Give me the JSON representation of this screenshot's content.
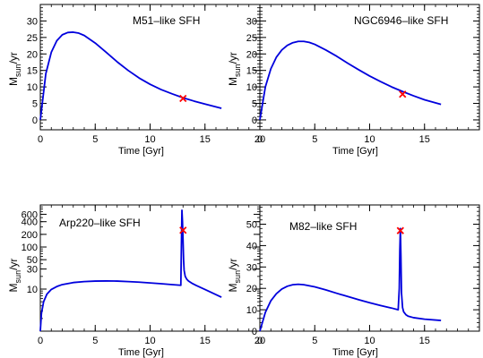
{
  "chart_data": [
    {
      "type": "line",
      "title": "M51–like SFH",
      "xlabel": "Time [Gyr]",
      "ylabel_main": "M",
      "ylabel_sub": "sun",
      "ylabel_tail": "/yr",
      "xlim": [
        0,
        20
      ],
      "ylim": [
        -3,
        35
      ],
      "yscale": "linear",
      "xticks": [
        0,
        5,
        10,
        15,
        20
      ],
      "xtick_labels": [
        "0",
        "5",
        "10",
        "15",
        "20"
      ],
      "yticks": [
        0,
        5,
        10,
        15,
        20,
        25,
        30
      ],
      "ytick_labels": [
        "0",
        "5",
        "10",
        "15",
        "20",
        "25",
        "30"
      ],
      "line_color": "#0000dd",
      "marker_color": "#ff0000",
      "marker": {
        "x": 13.0,
        "y": 6.5
      },
      "series": [
        {
          "x": [
            0,
            0.5,
            1,
            1.5,
            2,
            2.5,
            3,
            3.5,
            4,
            5,
            6,
            7,
            8,
            9,
            10,
            11,
            12,
            13,
            14,
            15,
            16.5
          ],
          "y": [
            0,
            14,
            20.5,
            24,
            25.8,
            26.5,
            26.6,
            26.3,
            25.6,
            23.3,
            20.5,
            17.6,
            15,
            12.7,
            10.8,
            9.2,
            7.9,
            6.7,
            5.7,
            4.8,
            3.5
          ]
        }
      ]
    },
    {
      "type": "line",
      "title": "NGC6946–like SFH",
      "xlabel": "Time [Gyr]",
      "ylabel_main": "M",
      "ylabel_sub": "sun",
      "ylabel_tail": "/yr",
      "xlim": [
        0,
        20
      ],
      "ylim": [
        -3,
        35
      ],
      "yscale": "linear",
      "xticks": [
        0,
        5,
        10,
        15
      ],
      "xtick_labels": [
        "0",
        "5",
        "10",
        "15"
      ],
      "yticks": [
        0,
        5,
        10,
        15,
        20,
        25,
        30
      ],
      "ytick_labels": [
        "0",
        "5",
        "10",
        "15",
        "20",
        "25",
        "30"
      ],
      "line_color": "#0000dd",
      "marker_color": "#ff0000",
      "marker": {
        "x": 13.0,
        "y": 7.8
      },
      "series": [
        {
          "x": [
            0,
            0.5,
            1,
            1.5,
            2,
            2.5,
            3,
            3.5,
            4,
            4.5,
            5,
            6,
            7,
            8,
            9,
            10,
            11,
            12,
            13,
            14,
            15,
            16.5
          ],
          "y": [
            0,
            10,
            15.5,
            19,
            21.2,
            22.6,
            23.4,
            23.8,
            23.8,
            23.5,
            22.9,
            21.2,
            19.3,
            17.2,
            15.2,
            13.3,
            11.6,
            10,
            8.6,
            7.3,
            6.1,
            4.7
          ]
        }
      ]
    },
    {
      "type": "line",
      "title": "Arp220–like SFH",
      "xlabel": "Time [Gyr]",
      "ylabel_main": "M",
      "ylabel_sub": "sun",
      "ylabel_tail": "/yr",
      "xlim": [
        0,
        20
      ],
      "ylim": [
        1,
        1000
      ],
      "yscale": "log",
      "xticks": [
        0,
        5,
        10,
        15,
        20
      ],
      "xtick_labels": [
        "0",
        "5",
        "10",
        "15",
        "20"
      ],
      "yticks": [
        10,
        30,
        50,
        100,
        200,
        400,
        600
      ],
      "ytick_labels": [
        "10",
        "30",
        "50",
        "100",
        "200",
        "400",
        "600"
      ],
      "line_color": "#0000dd",
      "marker_color": "#ff0000",
      "marker": {
        "x": 13.0,
        "y": 250
      },
      "series": [
        {
          "x": [
            0,
            0.1,
            0.3,
            0.6,
            1,
            1.5,
            2,
            3,
            4,
            5,
            6,
            7,
            8,
            9,
            10,
            11,
            12,
            12.8,
            12.85,
            12.9,
            12.95,
            13.0,
            13.05,
            13.1,
            13.2,
            13.35,
            13.5,
            13.8,
            14.2,
            15,
            16.5
          ],
          "y": [
            1,
            2.6,
            5,
            7.6,
            9.8,
            11.5,
            12.8,
            14.3,
            15.1,
            15.5,
            15.6,
            15.5,
            15.1,
            14.6,
            14,
            13.4,
            12.8,
            12.3,
            100,
            750,
            400,
            150,
            50,
            28,
            20,
            17,
            15.5,
            13.8,
            12.2,
            9.8,
            6.4
          ]
        }
      ]
    },
    {
      "type": "line",
      "title": "M82–like SFH",
      "xlabel": "Time [Gyr]",
      "ylabel_main": "M",
      "ylabel_sub": "sun",
      "ylabel_tail": "/yr",
      "xlim": [
        0,
        20
      ],
      "ylim": [
        0,
        59
      ],
      "yscale": "linear",
      "xticks": [
        0,
        5,
        10,
        15
      ],
      "xtick_labels": [
        "0",
        "5",
        "10",
        "15"
      ],
      "yticks": [
        0,
        10,
        20,
        30,
        40,
        50
      ],
      "ytick_labels": [
        "0",
        "10",
        "20",
        "30",
        "40",
        "50"
      ],
      "line_color": "#0000dd",
      "marker_color": "#ff0000",
      "marker": {
        "x": 12.8,
        "y": 47
      },
      "series": [
        {
          "x": [
            0,
            0.5,
            1,
            1.5,
            2,
            2.5,
            3,
            3.5,
            4,
            5,
            6,
            7,
            8,
            9,
            10,
            11,
            12,
            12.6,
            12.7,
            12.75,
            12.8,
            12.85,
            12.9,
            13.0,
            13.1,
            13.3,
            13.5,
            14,
            15,
            16.5
          ],
          "y": [
            0,
            8.8,
            14.2,
            17.5,
            19.7,
            21,
            21.7,
            21.9,
            21.7,
            20.7,
            19.3,
            17.7,
            16.2,
            14.7,
            13.3,
            12,
            10.8,
            10,
            20,
            38,
            48,
            35,
            18,
            11,
            9,
            7.7,
            7,
            6.3,
            5.6,
            5
          ]
        }
      ]
    }
  ]
}
